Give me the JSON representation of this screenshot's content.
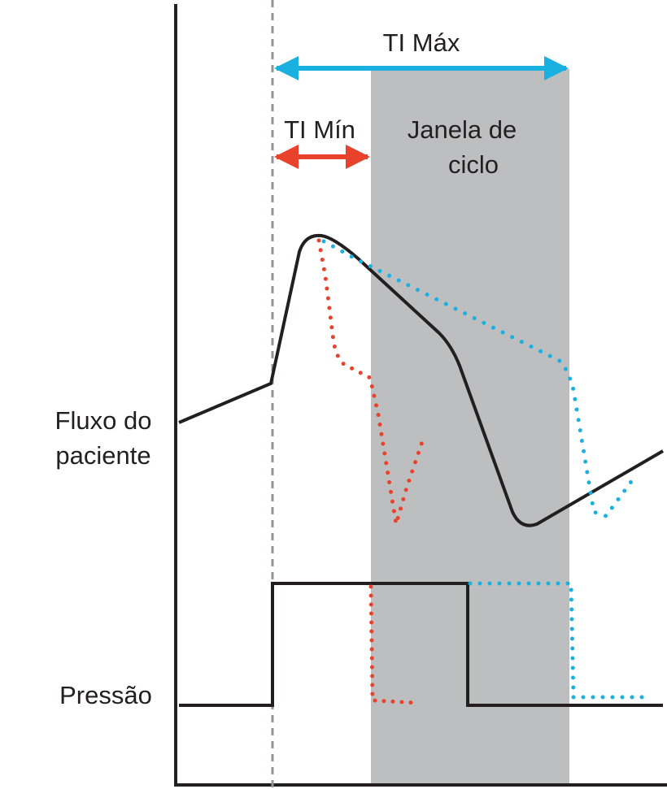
{
  "header": {
    "ti_max": "TI Máx",
    "ti_min": "TI Mín"
  },
  "window": {
    "lines": [
      "Janela de",
      "ciclo"
    ]
  },
  "axis_labels": {
    "flow": [
      "Fluxo do",
      "paciente"
    ],
    "pressure": "Pressão"
  }
}
